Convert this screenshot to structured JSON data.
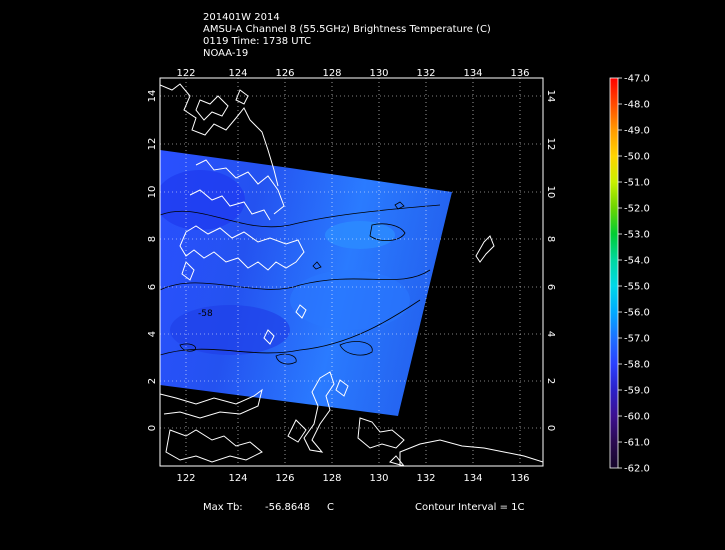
{
  "header": {
    "line1": "201401W 2014",
    "line2": "AMSU-A Channel 8 (55.5GHz) Brightness Temperature (C)",
    "line3": "0119 Time: 1738 UTC",
    "line4": "NOAA-19"
  },
  "map": {
    "lon_ticks": [
      "122",
      "124",
      "126",
      "128",
      "130",
      "132",
      "134",
      "136"
    ],
    "lat_ticks": [
      "0",
      "2",
      "4",
      "6",
      "8",
      "10",
      "12",
      "14"
    ],
    "contour_label": "-58",
    "colors": {
      "background": "#000000",
      "coast": "#ffffff",
      "grid": "#ffffff",
      "contour": "#000000"
    }
  },
  "colorbar": {
    "labels": [
      "-47.0",
      "-48.0",
      "-49.0",
      "-50.0",
      "-51.0",
      "-52.0",
      "-53.0",
      "-54.0",
      "-55.0",
      "-56.0",
      "-57.0",
      "-58.0",
      "-59.0",
      "-60.0",
      "-61.0",
      "-62.0"
    ],
    "colors": [
      "#ff0000",
      "#ff4a00",
      "#ff9a00",
      "#ffd400",
      "#c8f000",
      "#6ad400",
      "#00cc33",
      "#00d8a0",
      "#00d8e8",
      "#00aaff",
      "#1c70ff",
      "#2a40ff",
      "#2a20c8",
      "#3c1090",
      "#2a0a50",
      "#15052a"
    ]
  },
  "footer": {
    "max_label": "Max Tb:",
    "max_value": "-56.8648",
    "max_unit": "C",
    "contour_interval": "Contour Interval = 1C"
  }
}
